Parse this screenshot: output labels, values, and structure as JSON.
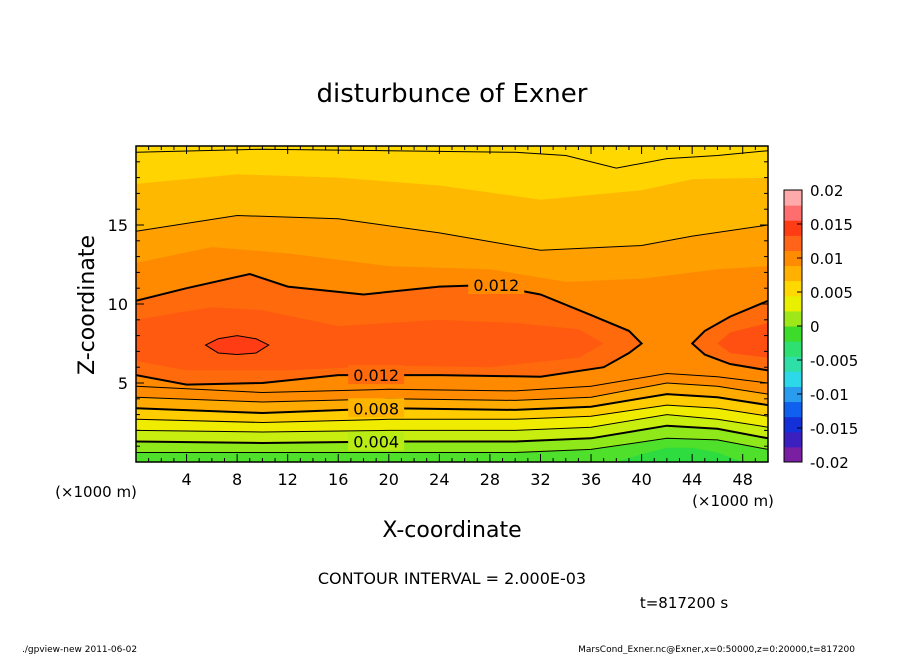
{
  "chart_data": {
    "type": "heatmap",
    "title": "disturbunce of Exner",
    "xlabel": "X-coordinate",
    "ylabel": "Z-coordinate",
    "x_unit": "(×1000 m)",
    "y_unit": "(×1000 m)",
    "xlim": [
      0,
      50
    ],
    "ylim": [
      0,
      20
    ],
    "x_ticks": [
      4,
      8,
      12,
      16,
      20,
      24,
      28,
      32,
      36,
      40,
      44,
      48
    ],
    "y_ticks": [
      5,
      10,
      15
    ],
    "colorbar": {
      "range": [
        -0.02,
        0.02
      ],
      "ticks": [
        "0.02",
        "0.015",
        "0.01",
        "0.005",
        "0",
        "-0.005",
        "-0.01",
        "-0.015",
        "-0.02"
      ],
      "colors": [
        "#7a1fa2",
        "#3b1fbf",
        "#1430d8",
        "#1060f0",
        "#2a9cf0",
        "#2dd8e8",
        "#2ee0a8",
        "#2ee070",
        "#3ddc2a",
        "#9ee81a",
        "#e8f000",
        "#ffd800",
        "#ffb000",
        "#ff8c00",
        "#ff6418",
        "#ff3c14",
        "#ff6e6e",
        "#ffaaaa"
      ]
    },
    "contour_labels": [
      {
        "x": 28.5,
        "z": 11.2,
        "text": "0.012"
      },
      {
        "x": 19.0,
        "z": 5.5,
        "text": "0.012"
      },
      {
        "x": 19.0,
        "z": 3.4,
        "text": "0.008"
      },
      {
        "x": 19.0,
        "z": 1.3,
        "text": "0.004"
      }
    ],
    "contour_lines": [
      {
        "value": 0.012,
        "points": [
          [
            0,
            10.2
          ],
          [
            4,
            11.0
          ],
          [
            9,
            11.9
          ],
          [
            12,
            11.1
          ],
          [
            18,
            10.6
          ],
          [
            24,
            11.1
          ],
          [
            28,
            11.2
          ],
          [
            32,
            10.6
          ],
          [
            36,
            9.3
          ],
          [
            39,
            8.3
          ],
          [
            40,
            7.5
          ],
          [
            39,
            6.9
          ],
          [
            37,
            6.0
          ],
          [
            32,
            5.4
          ],
          [
            24,
            5.5
          ],
          [
            16,
            5.5
          ],
          [
            10,
            5.0
          ],
          [
            4,
            4.9
          ],
          [
            0,
            5.5
          ]
        ]
      },
      {
        "value": 0.012,
        "points": [
          [
            50,
            10.2
          ],
          [
            47,
            9.2
          ],
          [
            45,
            8.3
          ],
          [
            44,
            7.5
          ],
          [
            45,
            6.8
          ],
          [
            47,
            6.2
          ],
          [
            50,
            5.8
          ]
        ]
      },
      {
        "value": 0.01,
        "points": [
          [
            0,
            14.6
          ],
          [
            8,
            15.6
          ],
          [
            16,
            15.4
          ],
          [
            24,
            14.5
          ],
          [
            32,
            13.4
          ],
          [
            40,
            13.7
          ],
          [
            44,
            14.3
          ],
          [
            50,
            15.0
          ]
        ]
      },
      {
        "value": 0.01,
        "points": [
          [
            0,
            4.8
          ],
          [
            10,
            4.4
          ],
          [
            20,
            4.6
          ],
          [
            30,
            4.5
          ],
          [
            36,
            4.8
          ],
          [
            42,
            5.6
          ],
          [
            46,
            5.4
          ],
          [
            50,
            5.0
          ]
        ]
      },
      {
        "value": 0.009,
        "points": [
          [
            0,
            4.1
          ],
          [
            10,
            3.8
          ],
          [
            20,
            4.0
          ],
          [
            30,
            3.9
          ],
          [
            36,
            4.1
          ],
          [
            42,
            5.0
          ],
          [
            46,
            4.8
          ],
          [
            50,
            4.3
          ]
        ]
      },
      {
        "value": 0.008,
        "points": [
          [
            0,
            3.4
          ],
          [
            10,
            3.1
          ],
          [
            20,
            3.4
          ],
          [
            30,
            3.3
          ],
          [
            36,
            3.5
          ],
          [
            42,
            4.3
          ],
          [
            46,
            4.1
          ],
          [
            50,
            3.6
          ]
        ]
      },
      {
        "value": 0.007,
        "points": [
          [
            0,
            2.7
          ],
          [
            10,
            2.5
          ],
          [
            20,
            2.7
          ],
          [
            30,
            2.7
          ],
          [
            36,
            2.9
          ],
          [
            42,
            3.6
          ],
          [
            46,
            3.4
          ],
          [
            50,
            2.9
          ]
        ]
      },
      {
        "value": 0.006,
        "points": [
          [
            0,
            2.0
          ],
          [
            10,
            1.9
          ],
          [
            20,
            2.0
          ],
          [
            30,
            2.0
          ],
          [
            36,
            2.2
          ],
          [
            42,
            3.0
          ],
          [
            46,
            2.7
          ],
          [
            50,
            2.2
          ]
        ]
      },
      {
        "value": 0.004,
        "points": [
          [
            0,
            1.3
          ],
          [
            10,
            1.2
          ],
          [
            20,
            1.3
          ],
          [
            30,
            1.3
          ],
          [
            36,
            1.5
          ],
          [
            42,
            2.3
          ],
          [
            46,
            2.1
          ],
          [
            50,
            1.5
          ]
        ]
      },
      {
        "value": 0.002,
        "points": [
          [
            0,
            0.6
          ],
          [
            10,
            0.6
          ],
          [
            20,
            0.6
          ],
          [
            30,
            0.6
          ],
          [
            36,
            0.8
          ],
          [
            42,
            1.5
          ],
          [
            46,
            1.4
          ],
          [
            50,
            0.8
          ]
        ]
      },
      {
        "value": 0.01,
        "points": [
          [
            0,
            19.6
          ],
          [
            10,
            19.8
          ],
          [
            20,
            19.7
          ],
          [
            30,
            19.6
          ],
          [
            34,
            19.4
          ],
          [
            38,
            18.6
          ],
          [
            42,
            19.2
          ],
          [
            46,
            19.4
          ],
          [
            50,
            19.7
          ]
        ]
      }
    ]
  },
  "contour_interval": "CONTOUR INTERVAL = 2.000E-03",
  "time_label": "t=817200 s",
  "footer_left": "./gpview-new 2011-06-02",
  "footer_right": "MarsCond_Exner.nc@Exner,x=0:50000,z=0:20000,t=817200"
}
